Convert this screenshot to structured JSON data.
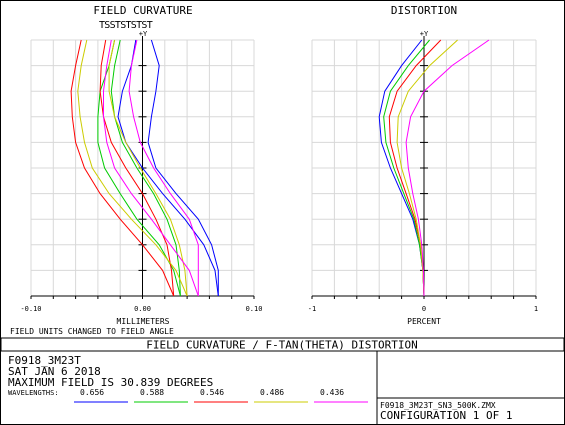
{
  "panels": {
    "curvature_title": "FIELD CURVATURE",
    "distortion_title": "DISTORTION",
    "y_axis_label": "+Y",
    "curvature_xlabel": "MILLIMETERS",
    "distortion_xlabel": "PERCENT",
    "legend_letters": [
      "T",
      "S",
      "S",
      "T",
      "S",
      "T",
      "S",
      "T",
      "S",
      "T"
    ],
    "field_note": "FIELD UNITS CHANGED TO FIELD ANGLE"
  },
  "banner": "FIELD CURVATURE / F-TAN(THETA) DISTORTION",
  "info": {
    "line1": "F0918_3M23T",
    "line2": "SAT JAN 6 2018",
    "line3": "MAXIMUM FIELD IS 30.839 DEGREES",
    "wavelengths_label": "WAVELENGTHS:",
    "wavelengths": [
      {
        "value": "0.656",
        "color": "#0000ff"
      },
      {
        "value": "0.588",
        "color": "#00cc00"
      },
      {
        "value": "0.546",
        "color": "#ff0000"
      },
      {
        "value": "0.486",
        "color": "#cccc00"
      },
      {
        "value": "0.436",
        "color": "#ff00ff"
      }
    ],
    "file_name": "F0918_3M23T_SN3_500K.ZMX",
    "configuration": "CONFIGURATION 1 OF 1"
  },
  "chart_data": [
    {
      "type": "line",
      "title": "FIELD CURVATURE",
      "xlabel": "MILLIMETERS",
      "ylabel": "+Y",
      "xlim": [
        -0.1,
        0.1
      ],
      "ylim": [
        0,
        1
      ],
      "x_tick_labels": [
        "-0.10",
        "0.00",
        "0.10"
      ],
      "grid": true,
      "series": [
        {
          "color": "#0000ff",
          "points": [
            [
              0.068,
              0
            ],
            [
              0.068,
              0.1
            ],
            [
              0.062,
              0.2
            ],
            [
              0.05,
              0.3
            ],
            [
              0.03,
              0.4
            ],
            [
              0.012,
              0.5
            ],
            [
              0.005,
              0.6
            ],
            [
              0.008,
              0.7
            ],
            [
              0.012,
              0.8
            ],
            [
              0.015,
              0.9
            ],
            [
              0.008,
              1.0
            ]
          ]
        },
        {
          "color": "#0000ff",
          "points": [
            [
              0.068,
              0
            ],
            [
              0.065,
              0.1
            ],
            [
              0.055,
              0.2
            ],
            [
              0.038,
              0.3
            ],
            [
              0.018,
              0.4
            ],
            [
              0.0,
              0.5
            ],
            [
              -0.015,
              0.6
            ],
            [
              -0.022,
              0.7
            ],
            [
              -0.018,
              0.8
            ],
            [
              -0.01,
              0.9
            ],
            [
              -0.006,
              1.0
            ]
          ]
        },
        {
          "color": "#00cc00",
          "points": [
            [
              0.034,
              0
            ],
            [
              0.033,
              0.1
            ],
            [
              0.03,
              0.2
            ],
            [
              0.022,
              0.3
            ],
            [
              0.01,
              0.4
            ],
            [
              -0.005,
              0.5
            ],
            [
              -0.018,
              0.6
            ],
            [
              -0.025,
              0.7
            ],
            [
              -0.028,
              0.8
            ],
            [
              -0.025,
              0.9
            ],
            [
              -0.02,
              1.0
            ]
          ]
        },
        {
          "color": "#00cc00",
          "points": [
            [
              0.034,
              0
            ],
            [
              0.028,
              0.1
            ],
            [
              0.015,
              0.2
            ],
            [
              -0.005,
              0.3
            ],
            [
              -0.02,
              0.4
            ],
            [
              -0.034,
              0.5
            ],
            [
              -0.04,
              0.6
            ],
            [
              -0.04,
              0.7
            ],
            [
              -0.038,
              0.8
            ],
            [
              -0.03,
              0.9
            ],
            [
              -0.025,
              1.0
            ]
          ]
        },
        {
          "color": "#ff0000",
          "points": [
            [
              0.028,
              0
            ],
            [
              0.026,
              0.1
            ],
            [
              0.022,
              0.2
            ],
            [
              0.012,
              0.3
            ],
            [
              0.0,
              0.4
            ],
            [
              -0.015,
              0.5
            ],
            [
              -0.028,
              0.6
            ],
            [
              -0.035,
              0.7
            ],
            [
              -0.038,
              0.8
            ],
            [
              -0.037,
              0.9
            ],
            [
              -0.033,
              1.0
            ]
          ]
        },
        {
          "color": "#ff0000",
          "points": [
            [
              0.028,
              0
            ],
            [
              0.018,
              0.1
            ],
            [
              0.0,
              0.2
            ],
            [
              -0.02,
              0.3
            ],
            [
              -0.038,
              0.4
            ],
            [
              -0.052,
              0.5
            ],
            [
              -0.06,
              0.6
            ],
            [
              -0.063,
              0.7
            ],
            [
              -0.064,
              0.8
            ],
            [
              -0.06,
              0.9
            ],
            [
              -0.055,
              1.0
            ]
          ]
        },
        {
          "color": "#cccc00",
          "points": [
            [
              0.04,
              0
            ],
            [
              0.038,
              0.1
            ],
            [
              0.033,
              0.2
            ],
            [
              0.025,
              0.3
            ],
            [
              0.012,
              0.4
            ],
            [
              -0.002,
              0.5
            ],
            [
              -0.015,
              0.6
            ],
            [
              -0.025,
              0.7
            ],
            [
              -0.03,
              0.8
            ],
            [
              -0.03,
              0.9
            ],
            [
              -0.025,
              1.0
            ]
          ]
        },
        {
          "color": "#cccc00",
          "points": [
            [
              0.04,
              0
            ],
            [
              0.03,
              0.1
            ],
            [
              0.012,
              0.2
            ],
            [
              -0.01,
              0.3
            ],
            [
              -0.03,
              0.4
            ],
            [
              -0.045,
              0.5
            ],
            [
              -0.052,
              0.6
            ],
            [
              -0.056,
              0.7
            ],
            [
              -0.058,
              0.8
            ],
            [
              -0.055,
              0.9
            ],
            [
              -0.05,
              1.0
            ]
          ]
        },
        {
          "color": "#ff00ff",
          "points": [
            [
              0.05,
              0
            ],
            [
              0.05,
              0.1
            ],
            [
              0.05,
              0.2
            ],
            [
              0.042,
              0.3
            ],
            [
              0.025,
              0.4
            ],
            [
              0.01,
              0.5
            ],
            [
              -0.002,
              0.6
            ],
            [
              -0.008,
              0.7
            ],
            [
              -0.012,
              0.8
            ],
            [
              -0.01,
              0.9
            ],
            [
              -0.005,
              1.0
            ]
          ]
        },
        {
          "color": "#ff00ff",
          "points": [
            [
              0.05,
              0
            ],
            [
              0.042,
              0.1
            ],
            [
              0.025,
              0.2
            ],
            [
              0.008,
              0.3
            ],
            [
              -0.01,
              0.4
            ],
            [
              -0.025,
              0.5
            ],
            [
              -0.032,
              0.6
            ],
            [
              -0.035,
              0.7
            ],
            [
              -0.035,
              0.8
            ],
            [
              -0.032,
              0.9
            ],
            [
              -0.028,
              1.0
            ]
          ]
        }
      ]
    },
    {
      "type": "line",
      "title": "DISTORTION",
      "xlabel": "PERCENT",
      "ylabel": "+Y",
      "xlim": [
        -1,
        1
      ],
      "ylim": [
        0,
        1
      ],
      "x_tick_labels": [
        "-1",
        "0",
        "1"
      ],
      "grid": true,
      "series": [
        {
          "color": "#0000ff",
          "points": [
            [
              0,
              0
            ],
            [
              -0.01,
              0.1
            ],
            [
              -0.04,
              0.2
            ],
            [
              -0.1,
              0.3
            ],
            [
              -0.2,
              0.4
            ],
            [
              -0.3,
              0.5
            ],
            [
              -0.38,
              0.6
            ],
            [
              -0.4,
              0.7
            ],
            [
              -0.35,
              0.8
            ],
            [
              -0.2,
              0.9
            ],
            [
              -0.02,
              1.0
            ]
          ]
        },
        {
          "color": "#00cc00",
          "points": [
            [
              0,
              0
            ],
            [
              -0.01,
              0.1
            ],
            [
              -0.04,
              0.2
            ],
            [
              -0.09,
              0.3
            ],
            [
              -0.18,
              0.4
            ],
            [
              -0.27,
              0.5
            ],
            [
              -0.34,
              0.6
            ],
            [
              -0.36,
              0.7
            ],
            [
              -0.3,
              0.8
            ],
            [
              -0.14,
              0.9
            ],
            [
              0.05,
              1.0
            ]
          ]
        },
        {
          "color": "#ff0000",
          "points": [
            [
              0,
              0
            ],
            [
              -0.01,
              0.1
            ],
            [
              -0.03,
              0.2
            ],
            [
              -0.08,
              0.3
            ],
            [
              -0.16,
              0.4
            ],
            [
              -0.24,
              0.5
            ],
            [
              -0.3,
              0.6
            ],
            [
              -0.31,
              0.7
            ],
            [
              -0.24,
              0.8
            ],
            [
              -0.07,
              0.9
            ],
            [
              0.15,
              1.0
            ]
          ]
        },
        {
          "color": "#cccc00",
          "points": [
            [
              0,
              0
            ],
            [
              -0.01,
              0.1
            ],
            [
              -0.03,
              0.2
            ],
            [
              -0.07,
              0.3
            ],
            [
              -0.13,
              0.4
            ],
            [
              -0.2,
              0.5
            ],
            [
              -0.24,
              0.6
            ],
            [
              -0.23,
              0.7
            ],
            [
              -0.14,
              0.8
            ],
            [
              0.05,
              0.9
            ],
            [
              0.3,
              1.0
            ]
          ]
        },
        {
          "color": "#ff00ff",
          "points": [
            [
              0,
              0
            ],
            [
              -0.005,
              0.1
            ],
            [
              -0.02,
              0.2
            ],
            [
              -0.05,
              0.3
            ],
            [
              -0.1,
              0.4
            ],
            [
              -0.14,
              0.5
            ],
            [
              -0.16,
              0.6
            ],
            [
              -0.12,
              0.7
            ],
            [
              0.0,
              0.8
            ],
            [
              0.25,
              0.9
            ],
            [
              0.58,
              1.0
            ]
          ]
        }
      ]
    }
  ]
}
